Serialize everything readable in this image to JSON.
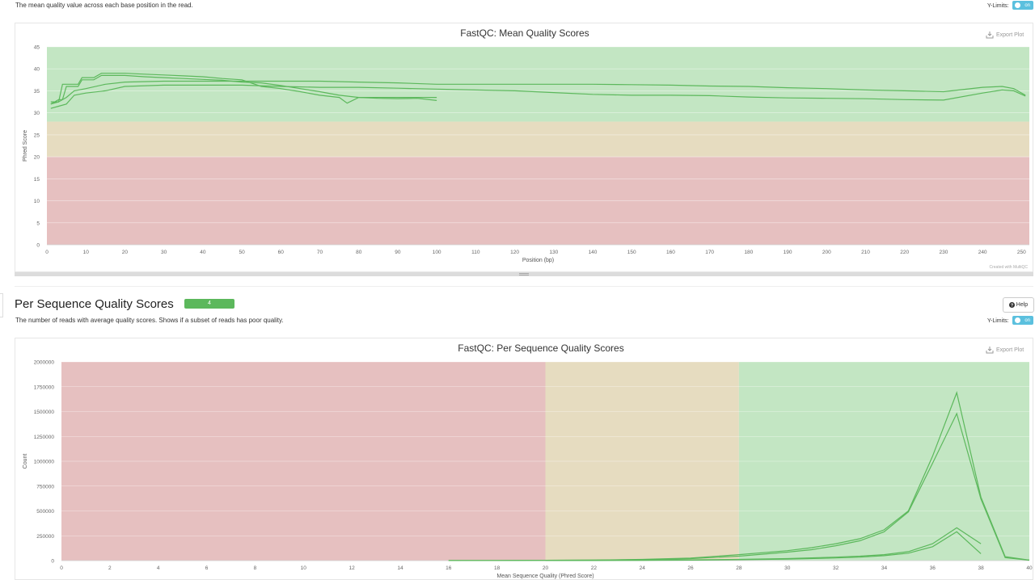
{
  "section1": {
    "description": "The mean quality value across each base position in the read.",
    "ylimits_label": "Y-Limits:",
    "toggle_label": "on",
    "plot": {
      "title": "FastQC: Mean Quality Scores",
      "export_label": "Export Plot",
      "credit": "Created with MultiQC"
    }
  },
  "section2": {
    "title": "Per Sequence Quality Scores",
    "badge": "4",
    "help_label": "Help",
    "description": "The number of reads with average quality scores. Shows if a subset of reads has poor quality.",
    "ylimits_label": "Y-Limits:",
    "toggle_label": "on",
    "plot": {
      "title": "FastQC: Per Sequence Quality Scores",
      "export_label": "Export Plot"
    }
  },
  "chart_data": [
    {
      "type": "line",
      "title": "FastQC: Mean Quality Scores",
      "xlabel": "Position (bp)",
      "ylabel": "Phred Score",
      "xlim": [
        0,
        252
      ],
      "ylim": [
        0,
        45
      ],
      "x_ticks": [
        0,
        10,
        20,
        30,
        40,
        50,
        60,
        70,
        80,
        90,
        100,
        110,
        120,
        130,
        140,
        150,
        160,
        170,
        180,
        190,
        200,
        210,
        220,
        230,
        240,
        250
      ],
      "y_ticks": [
        0,
        5,
        10,
        15,
        20,
        25,
        30,
        35,
        40,
        45
      ],
      "bands": [
        {
          "from": 0,
          "to": 20,
          "color": "#e6c0c0"
        },
        {
          "from": 20,
          "to": 28,
          "color": "#e6dcc0"
        },
        {
          "from": 28,
          "to": 45,
          "color": "#c3e6c3"
        }
      ],
      "line_color": "#5cb85c",
      "series": [
        {
          "x": [
            1,
            2,
            3,
            4,
            5,
            6,
            7,
            8,
            9,
            10,
            12,
            14,
            16,
            18,
            20,
            25,
            30,
            35,
            40,
            45,
            50,
            55,
            60,
            65,
            70,
            75,
            77,
            80,
            85,
            90,
            95,
            100
          ],
          "values": [
            32.0,
            32.5,
            32.5,
            36.5,
            36.5,
            36.5,
            36.5,
            36.5,
            38.0,
            38.0,
            38.0,
            39.0,
            39.0,
            39.0,
            39.0,
            38.8,
            38.6,
            38.4,
            38.2,
            37.8,
            37.5,
            36.0,
            35.5,
            34.8,
            34.0,
            33.5,
            32.2,
            33.5,
            33.5,
            33.5,
            33.5,
            33.5
          ]
        },
        {
          "x": [
            1,
            2,
            3,
            4,
            5,
            6,
            7,
            8,
            9,
            10,
            12,
            14,
            16,
            18,
            20,
            25,
            30,
            35,
            40,
            45,
            50,
            55,
            60,
            65,
            70,
            75,
            80,
            85,
            90,
            95,
            100
          ],
          "values": [
            32.5,
            32.5,
            33.0,
            33.0,
            36.0,
            36.0,
            36.0,
            36.0,
            37.5,
            37.5,
            37.5,
            38.5,
            38.5,
            38.5,
            38.5,
            38.2,
            38.0,
            37.8,
            37.6,
            37.4,
            37.0,
            36.8,
            36.2,
            35.5,
            34.8,
            34.0,
            33.5,
            33.3,
            33.2,
            33.3,
            32.8
          ]
        },
        {
          "x": [
            1,
            3,
            5,
            7,
            10,
            15,
            20,
            30,
            40,
            50,
            60,
            70,
            80,
            90,
            100,
            110,
            120,
            130,
            140,
            150,
            160,
            170,
            180,
            190,
            200,
            210,
            220,
            230,
            240,
            245,
            248,
            251
          ],
          "values": [
            32.0,
            32.5,
            33.5,
            35.0,
            35.5,
            36.5,
            37.0,
            37.2,
            37.2,
            37.2,
            37.2,
            37.2,
            37.0,
            36.8,
            36.5,
            36.5,
            36.5,
            36.5,
            36.5,
            36.4,
            36.3,
            36.1,
            36.0,
            35.7,
            35.5,
            35.2,
            35.0,
            34.8,
            35.8,
            36.0,
            35.5,
            34.0
          ]
        },
        {
          "x": [
            1,
            3,
            5,
            7,
            10,
            15,
            20,
            30,
            40,
            50,
            60,
            70,
            80,
            90,
            100,
            110,
            120,
            130,
            140,
            150,
            160,
            170,
            180,
            190,
            200,
            210,
            220,
            230,
            240,
            245,
            248,
            251
          ],
          "values": [
            31.0,
            31.5,
            32.0,
            34.0,
            34.5,
            35.0,
            36.0,
            36.3,
            36.3,
            36.3,
            36.0,
            35.8,
            35.8,
            35.6,
            35.4,
            35.2,
            35.0,
            34.6,
            34.2,
            34.0,
            34.0,
            33.9,
            33.6,
            33.4,
            33.3,
            33.2,
            33.0,
            32.9,
            34.5,
            35.2,
            35.0,
            33.8
          ]
        }
      ]
    },
    {
      "type": "line",
      "title": "FastQC: Per Sequence Quality Scores",
      "xlabel": "Mean Sequence Quality (Phred Score)",
      "ylabel": "Count",
      "xlim": [
        0,
        40
      ],
      "ylim": [
        0,
        2000000
      ],
      "x_ticks": [
        0,
        2,
        4,
        6,
        8,
        10,
        12,
        14,
        16,
        18,
        20,
        22,
        24,
        26,
        28,
        30,
        32,
        34,
        36,
        38,
        40
      ],
      "y_ticks": [
        0,
        250000,
        500000,
        750000,
        1000000,
        1250000,
        1500000,
        1750000,
        2000000
      ],
      "bands": [
        {
          "from": 0,
          "to": 20,
          "color": "#e6c0c0"
        },
        {
          "from": 20,
          "to": 28,
          "color": "#e6dcc0"
        },
        {
          "from": 28,
          "to": 40,
          "color": "#c3e6c3"
        }
      ],
      "line_color": "#5cb85c",
      "series": [
        {
          "x": [
            16,
            18,
            20,
            22,
            24,
            26,
            28,
            30,
            31,
            32,
            33,
            34,
            35,
            36,
            37,
            38,
            39,
            40
          ],
          "values": [
            1000,
            2000,
            3000,
            6000,
            12000,
            25000,
            60000,
            100000,
            130000,
            170000,
            220000,
            310000,
            500000,
            1050000,
            1690000,
            640000,
            40000,
            5000
          ]
        },
        {
          "x": [
            16,
            18,
            20,
            22,
            24,
            26,
            28,
            30,
            31,
            32,
            33,
            34,
            35,
            36,
            37,
            38,
            39,
            40
          ],
          "values": [
            1000,
            2000,
            3000,
            5000,
            10000,
            20000,
            45000,
            85000,
            110000,
            150000,
            200000,
            290000,
            490000,
            980000,
            1480000,
            620000,
            30000,
            4000
          ]
        },
        {
          "x": [
            20,
            22,
            24,
            26,
            28,
            30,
            32,
            33,
            34,
            35,
            36,
            37,
            38
          ],
          "values": [
            1000,
            2000,
            4000,
            7000,
            12000,
            20000,
            35000,
            45000,
            60000,
            90000,
            170000,
            330000,
            170000
          ]
        },
        {
          "x": [
            20,
            22,
            24,
            26,
            28,
            30,
            32,
            33,
            34,
            35,
            36,
            37,
            38
          ],
          "values": [
            500,
            1500,
            3000,
            5000,
            9000,
            15000,
            27000,
            35000,
            50000,
            75000,
            140000,
            290000,
            70000
          ]
        }
      ]
    }
  ]
}
